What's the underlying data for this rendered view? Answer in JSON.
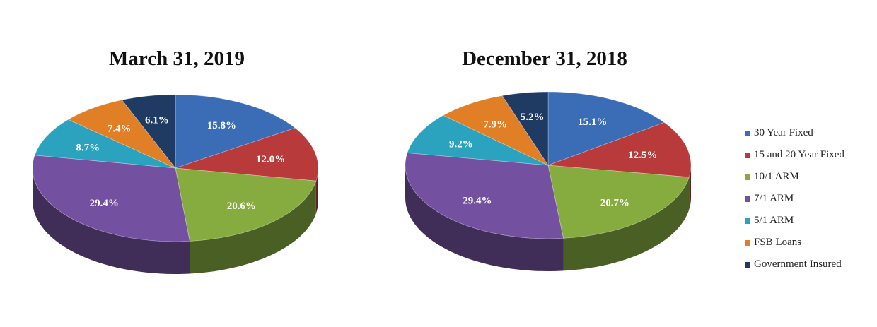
{
  "colors": {
    "30 Year Fixed": "#3A6DB5",
    "15 and 20 Year Fixed": "#B83A3A",
    "10/1 ARM": "#86AC3F",
    "7/1 ARM": "#7451A0",
    "5/1 ARM": "#2CA3BE",
    "FSB Loans": "#E07F25",
    "Government Insured": "#1F3A63"
  },
  "legend": {
    "position": "right",
    "items": [
      "30 Year Fixed",
      "15 and 20 Year Fixed",
      "10/1 ARM",
      "7/1 ARM",
      "5/1 ARM",
      "FSB Loans",
      "Government Insured"
    ]
  },
  "chart_data": [
    {
      "type": "pie",
      "style": "3d",
      "title": "March 31, 2019",
      "categories": [
        "30 Year Fixed",
        "15 and 20 Year Fixed",
        "10/1 ARM",
        "7/1 ARM",
        "5/1 ARM",
        "FSB Loans",
        "Government Insured"
      ],
      "values": [
        15.8,
        12.0,
        20.6,
        29.4,
        8.7,
        7.4,
        6.1
      ],
      "labels": [
        "15.8%",
        "12.0%",
        "20.6%",
        "29.4%",
        "8.7%",
        "7.4%",
        "6.1%"
      ]
    },
    {
      "type": "pie",
      "style": "3d",
      "title": "December 31, 2018",
      "categories": [
        "30 Year Fixed",
        "15 and 20 Year Fixed",
        "10/1 ARM",
        "7/1 ARM",
        "5/1 ARM",
        "FSB Loans",
        "Government Insured"
      ],
      "values": [
        15.1,
        12.5,
        20.7,
        29.4,
        9.2,
        7.9,
        5.2
      ],
      "labels": [
        "15.1%",
        "12.5%",
        "20.7%",
        "29.4%",
        "9.2%",
        "7.9%",
        "5.2%"
      ]
    }
  ]
}
